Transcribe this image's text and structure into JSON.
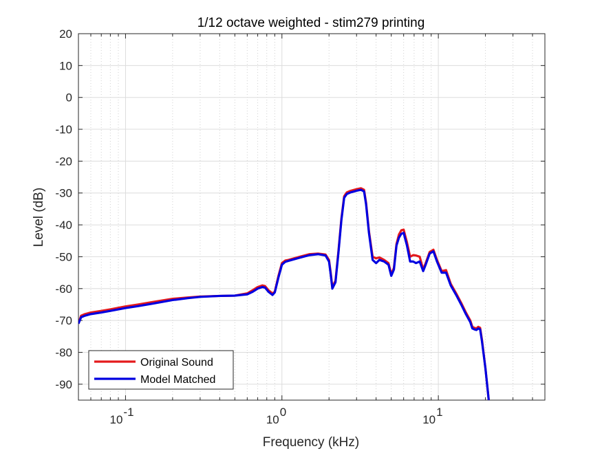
{
  "chart_data": {
    "type": "line",
    "title": "1/12 octave weighted - stim279 printing",
    "xlabel": "Frequency (kHz)",
    "ylabel": "Level (dB)",
    "xscale": "log",
    "xlim": [
      0.05,
      48
    ],
    "ylim": [
      -95,
      20
    ],
    "yticks": [
      20,
      10,
      0,
      -10,
      -20,
      -30,
      -40,
      -50,
      -60,
      -70,
      -80,
      -90
    ],
    "xticks": [
      {
        "value": 0.1,
        "base": "10",
        "exp": "-1"
      },
      {
        "value": 1,
        "base": "10",
        "exp": "0"
      },
      {
        "value": 10,
        "base": "10",
        "exp": "1"
      }
    ],
    "grid": true,
    "legend_position": "bottom-left",
    "series": [
      {
        "name": "Original Sound",
        "color": "#e41a1c",
        "x": [
          0.05,
          0.052,
          0.055,
          0.06,
          0.07,
          0.08,
          0.1,
          0.12,
          0.15,
          0.2,
          0.25,
          0.3,
          0.4,
          0.5,
          0.6,
          0.65,
          0.7,
          0.75,
          0.78,
          0.82,
          0.87,
          0.9,
          0.95,
          1.0,
          1.05,
          1.1,
          1.3,
          1.5,
          1.7,
          1.9,
          2.0,
          2.05,
          2.1,
          2.2,
          2.3,
          2.4,
          2.5,
          2.6,
          2.75,
          3.0,
          3.2,
          3.35,
          3.45,
          3.6,
          3.8,
          4.0,
          4.2,
          4.5,
          4.8,
          5.0,
          5.2,
          5.4,
          5.6,
          5.8,
          6.0,
          6.3,
          6.6,
          6.9,
          7.2,
          7.6,
          8.0,
          8.3,
          8.8,
          9.3,
          9.8,
          10.5,
          11.2,
          12.0,
          13.0,
          14.0,
          15.0,
          16.0,
          16.5,
          17.0,
          17.5,
          18.0,
          18.5,
          19.0,
          20.0,
          21.0
        ],
        "y": [
          -71,
          -68.5,
          -68,
          -67.5,
          -67,
          -66.5,
          -65.6,
          -65,
          -64.2,
          -63.2,
          -62.8,
          -62.5,
          -62.3,
          -62.2,
          -61.5,
          -60.5,
          -59.5,
          -59,
          -59.2,
          -60.5,
          -61.5,
          -61,
          -56,
          -52,
          -51.2,
          -51,
          -50,
          -49.2,
          -49,
          -49.3,
          -51,
          -55,
          -59.5,
          -57.5,
          -48,
          -38,
          -31,
          -29.8,
          -29.3,
          -28.8,
          -28.5,
          -29,
          -33,
          -42,
          -50,
          -50.5,
          -50.2,
          -51,
          -52,
          -55.5,
          -53.5,
          -46,
          -43,
          -41.7,
          -41.5,
          -45.5,
          -50,
          -49.5,
          -49.6,
          -50,
          -54,
          -52,
          -48.5,
          -47.8,
          -51,
          -54.5,
          -54.2,
          -58.5,
          -61.5,
          -64.5,
          -67.5,
          -70,
          -72,
          -72.3,
          -72.5,
          -72,
          -72.3,
          -76,
          -85,
          -95
        ]
      },
      {
        "name": "Model Matched",
        "color": "#0000e0",
        "x": [
          0.05,
          0.052,
          0.055,
          0.06,
          0.07,
          0.08,
          0.1,
          0.12,
          0.15,
          0.2,
          0.25,
          0.3,
          0.4,
          0.5,
          0.6,
          0.65,
          0.7,
          0.75,
          0.78,
          0.82,
          0.87,
          0.9,
          0.95,
          1.0,
          1.05,
          1.1,
          1.3,
          1.5,
          1.7,
          1.9,
          2.0,
          2.05,
          2.1,
          2.2,
          2.3,
          2.4,
          2.5,
          2.6,
          2.75,
          3.0,
          3.2,
          3.35,
          3.45,
          3.6,
          3.8,
          4.0,
          4.2,
          4.5,
          4.8,
          5.0,
          5.2,
          5.4,
          5.6,
          5.8,
          6.0,
          6.3,
          6.6,
          6.9,
          7.2,
          7.6,
          8.0,
          8.3,
          8.8,
          9.3,
          9.8,
          10.5,
          11.2,
          12.0,
          13.0,
          14.0,
          15.0,
          16.0,
          16.5,
          17.0,
          17.5,
          18.0,
          18.5,
          19.0,
          20.0,
          21.0
        ],
        "y": [
          -71,
          -69,
          -68.5,
          -68,
          -67.5,
          -67,
          -66.1,
          -65.5,
          -64.7,
          -63.6,
          -63,
          -62.6,
          -62.3,
          -62.2,
          -61.8,
          -61,
          -60,
          -59.5,
          -59.7,
          -61,
          -62,
          -61.2,
          -56.5,
          -52.5,
          -51.6,
          -51.3,
          -50.3,
          -49.5,
          -49.2,
          -49.6,
          -51.5,
          -55.5,
          -60,
          -58,
          -48.5,
          -38.5,
          -31.5,
          -30.3,
          -29.8,
          -29.3,
          -29,
          -29.5,
          -33.5,
          -42.5,
          -51,
          -52,
          -51,
          -51.5,
          -52.5,
          -56,
          -54,
          -46.5,
          -44,
          -42.8,
          -42.5,
          -46.5,
          -51.5,
          -51.5,
          -52,
          -51.5,
          -54.5,
          -52.5,
          -49,
          -48.3,
          -51.5,
          -55,
          -55,
          -59,
          -62,
          -65,
          -68,
          -70.5,
          -72.5,
          -72.8,
          -73,
          -72.5,
          -72.8,
          -76.5,
          -85,
          -95
        ]
      }
    ]
  }
}
